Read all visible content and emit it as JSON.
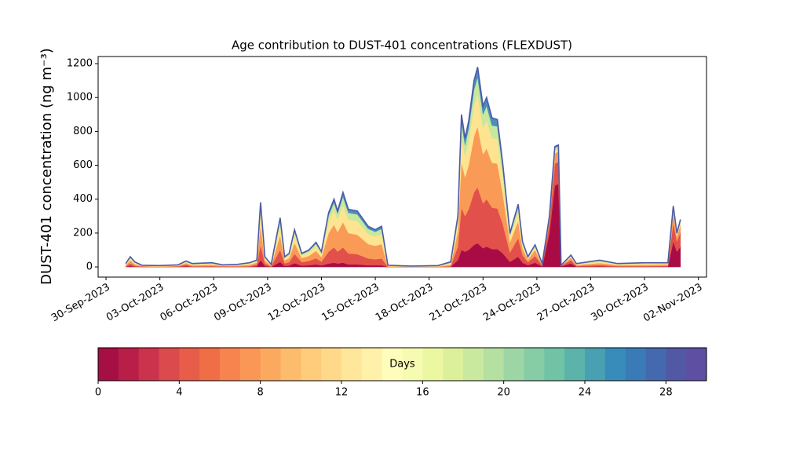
{
  "chart_data": {
    "type": "stacked_area",
    "title": "Age contribution to DUST-401 concentrations (FLEXDUST)",
    "y_label": "DUST-401 concentration (ng m⁻³)",
    "xlim": [
      -0.44,
      33.45
    ],
    "ylim": [
      -60,
      1242
    ],
    "yticks": [
      0,
      200,
      400,
      600,
      800,
      1000,
      1200
    ],
    "xticks": [
      {
        "value": 0,
        "label": "30-Sep-2023"
      },
      {
        "value": 3,
        "label": "03-Oct-2023"
      },
      {
        "value": 6,
        "label": "06-Oct-2023"
      },
      {
        "value": 9,
        "label": "09-Oct-2023"
      },
      {
        "value": 12,
        "label": "12-Oct-2023"
      },
      {
        "value": 15,
        "label": "15-Oct-2023"
      },
      {
        "value": 18,
        "label": "18-Oct-2023"
      },
      {
        "value": 21,
        "label": "21-Oct-2023"
      },
      {
        "value": 24,
        "label": "24-Oct-2023"
      },
      {
        "value": 27,
        "label": "27-Oct-2023"
      },
      {
        "value": 30,
        "label": "30-Oct-2023"
      },
      {
        "value": 33,
        "label": "02-Nov-2023"
      }
    ],
    "x": [
      1.1,
      1.35,
      1.6,
      2.0,
      3.0,
      4.0,
      4.46,
      4.8,
      5.9,
      6.5,
      7.3,
      8.0,
      8.4,
      8.61,
      8.85,
      9.2,
      9.7,
      9.95,
      10.2,
      10.5,
      10.9,
      11.3,
      11.7,
      12.0,
      12.4,
      12.7,
      12.9,
      13.2,
      13.5,
      14.0,
      14.6,
      15.0,
      15.35,
      15.7,
      17.0,
      18.5,
      19.2,
      19.6,
      19.8,
      20.0,
      20.2,
      20.5,
      20.7,
      21.0,
      21.2,
      21.5,
      21.8,
      22.1,
      22.5,
      22.96,
      23.2,
      23.5,
      23.9,
      24.3,
      24.7,
      25.0,
      25.2,
      25.35,
      25.9,
      26.2,
      27.5,
      28.5,
      30.0,
      31.3,
      31.6,
      31.8,
      32.0
    ],
    "series": [
      {
        "color": "#a90c44",
        "values": [
          1,
          6,
          2,
          1,
          0,
          1,
          4,
          1,
          1,
          1,
          1,
          1,
          4,
          40,
          6,
          1,
          29,
          6,
          8,
          22,
          8,
          10,
          15,
          9,
          20,
          25,
          20,
          25,
          15,
          15,
          10,
          10,
          10,
          0,
          0,
          0,
          1,
          40,
          100,
          90,
          100,
          130,
          140,
          110,
          120,
          105,
          105,
          80,
          30,
          60,
          25,
          10,
          25,
          3,
          200,
          480,
          490,
          4,
          20,
          2,
          3,
          1,
          1,
          2,
          150,
          90,
          120
        ]
      },
      {
        "color": "#e1504a",
        "values": [
          3,
          15,
          5,
          2,
          1,
          2,
          9,
          3,
          4,
          2,
          2,
          4,
          10,
          90,
          15,
          2,
          72,
          15,
          20,
          55,
          20,
          25,
          36,
          22,
          70,
          90,
          70,
          90,
          65,
          60,
          40,
          35,
          40,
          1,
          1,
          1,
          4,
          80,
          250,
          210,
          240,
          310,
          330,
          265,
          280,
          245,
          240,
          175,
          55,
          110,
          45,
          18,
          40,
          5,
          60,
          130,
          130,
          2,
          20,
          4,
          8,
          4,
          4,
          5,
          110,
          60,
          85
        ]
      },
      {
        "color": "#fa9a57",
        "values": [
          6,
          18,
          9,
          3,
          2,
          4,
          10,
          6,
          8,
          4,
          5,
          8,
          12,
          120,
          18,
          5,
          87,
          18,
          24,
          66,
          24,
          30,
          44,
          27,
          110,
          135,
          115,
          150,
          120,
          115,
          85,
          80,
          85,
          3,
          1,
          2,
          8,
          90,
          270,
          230,
          260,
          330,
          360,
          290,
          300,
          265,
          265,
          180,
          60,
          100,
          40,
          16,
          35,
          5,
          25,
          60,
          60,
          2,
          15,
          6,
          12,
          6,
          8,
          8,
          60,
          30,
          45
        ]
      },
      {
        "color": "#fee490",
        "values": [
          5,
          12,
          7,
          2,
          2,
          3,
          7,
          5,
          6,
          3,
          4,
          6,
          8,
          80,
          12,
          4,
          58,
          12,
          16,
          44,
          16,
          20,
          29,
          18,
          70,
          90,
          75,
          100,
          80,
          80,
          60,
          55,
          60,
          3,
          1,
          2,
          8,
          50,
          150,
          125,
          140,
          180,
          190,
          155,
          165,
          145,
          145,
          95,
          30,
          55,
          20,
          9,
          17,
          4,
          8,
          20,
          20,
          1,
          8,
          4,
          9,
          5,
          6,
          5,
          25,
          12,
          18
        ]
      },
      {
        "color": "#c7e89e",
        "values": [
          3,
          6,
          4,
          1,
          2,
          1,
          3,
          3,
          4,
          1,
          2,
          4,
          4,
          35,
          6,
          2,
          29,
          6,
          8,
          22,
          8,
          10,
          14,
          9,
          35,
          40,
          35,
          50,
          40,
          40,
          30,
          27,
          30,
          2,
          1,
          2,
          6,
          25,
          80,
          65,
          75,
          95,
          100,
          80,
          85,
          75,
          75,
          50,
          15,
          30,
          12,
          5,
          9,
          2,
          5,
          13,
          13,
          1,
          5,
          3,
          5,
          3,
          4,
          3,
          10,
          5,
          8
        ]
      },
      {
        "color": "#4a8fbd",
        "values": [
          2,
          3,
          3,
          1,
          1,
          1,
          2,
          2,
          2,
          1,
          1,
          2,
          2,
          16,
          3,
          1,
          15,
          3,
          4,
          11,
          4,
          5,
          7,
          5,
          15,
          20,
          15,
          25,
          20,
          20,
          15,
          13,
          15,
          1,
          1,
          1,
          3,
          15,
          50,
          40,
          45,
          55,
          60,
          50,
          50,
          45,
          40,
          30,
          10,
          15,
          8,
          2,
          4,
          1,
          2,
          7,
          7,
          0,
          2,
          1,
          3,
          1,
          2,
          2,
          5,
          3,
          4
        ]
      }
    ],
    "line_color": "#4e5aa6",
    "colorbar": {
      "label": "Days",
      "lim": [
        0,
        30
      ],
      "ticks": [
        0,
        4,
        8,
        12,
        16,
        20,
        24,
        28
      ],
      "colors": [
        "#a50f43",
        "#b81e48",
        "#cb334c",
        "#db4a4c",
        "#e75d4a",
        "#f06e46",
        "#f7844e",
        "#fa9656",
        "#fca960",
        "#fdbb6c",
        "#fecc7b",
        "#fed98a",
        "#fee69a",
        "#fff1a9",
        "#fffdbc",
        "#f6fbb2",
        "#ecf7a2",
        "#dcf09b",
        "#c9e99e",
        "#b4e0a2",
        "#9dd6a4",
        "#86cda5",
        "#70c3a5",
        "#5bb3aa",
        "#48a0b2",
        "#378cba",
        "#3a7bb7",
        "#4569ae",
        "#5158a4",
        "#5e4fa2"
      ]
    }
  }
}
